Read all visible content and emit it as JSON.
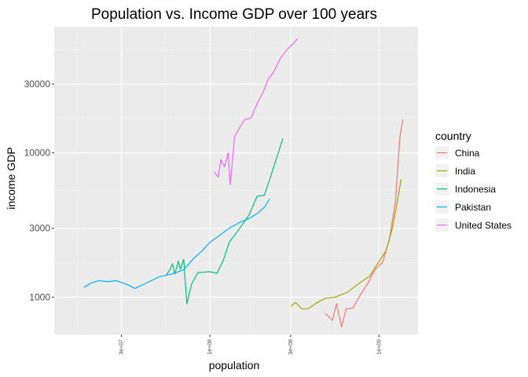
{
  "chart_data": {
    "type": "line",
    "title": "Population vs. Income GDP over 100 years",
    "xlabel": "population",
    "ylabel": "income GDP",
    "x_scale": "log10",
    "y_scale": "log10",
    "xlim": [
      12000000,
      1700000000
    ],
    "ylim": [
      550,
      75000
    ],
    "x_ticks": [
      {
        "value": 30000000,
        "label": "3e+07"
      },
      {
        "value": 100000000,
        "label": "1e+08"
      },
      {
        "value": 300000000,
        "label": "3e+08"
      },
      {
        "value": 1000000000,
        "label": "1e+09"
      }
    ],
    "y_ticks": [
      {
        "value": 1000,
        "label": "1000"
      },
      {
        "value": 3000,
        "label": "3000"
      },
      {
        "value": 10000,
        "label": "10000"
      },
      {
        "value": 30000,
        "label": "30000"
      }
    ],
    "grid": true,
    "legend": {
      "title": "country",
      "position": "right"
    },
    "series": [
      {
        "name": "China",
        "color": "#F8766D",
        "points": [
          [
            480000000,
            770
          ],
          [
            500000000,
            740
          ],
          [
            530000000,
            690
          ],
          [
            560000000,
            900
          ],
          [
            600000000,
            620
          ],
          [
            640000000,
            830
          ],
          [
            700000000,
            840
          ],
          [
            780000000,
            1050
          ],
          [
            860000000,
            1250
          ],
          [
            950000000,
            1560
          ],
          [
            1050000000,
            1750
          ],
          [
            1150000000,
            2500
          ],
          [
            1250000000,
            4600
          ],
          [
            1300000000,
            9000
          ],
          [
            1330000000,
            13000
          ],
          [
            1380000000,
            17000
          ]
        ]
      },
      {
        "name": "India",
        "color": "#A3A500",
        "points": [
          [
            300000000,
            860
          ],
          [
            320000000,
            920
          ],
          [
            350000000,
            830
          ],
          [
            380000000,
            830
          ],
          [
            420000000,
            900
          ],
          [
            480000000,
            980
          ],
          [
            550000000,
            1000
          ],
          [
            650000000,
            1080
          ],
          [
            750000000,
            1230
          ],
          [
            880000000,
            1400
          ],
          [
            1000000000,
            1770
          ],
          [
            1100000000,
            2100
          ],
          [
            1200000000,
            3000
          ],
          [
            1300000000,
            5000
          ],
          [
            1350000000,
            6600
          ]
        ]
      },
      {
        "name": "Indonesia",
        "color": "#00BF7D",
        "points": [
          [
            55000000,
            1420
          ],
          [
            58000000,
            1550
          ],
          [
            60000000,
            1700
          ],
          [
            62000000,
            1450
          ],
          [
            65000000,
            1770
          ],
          [
            67000000,
            1560
          ],
          [
            70000000,
            1830
          ],
          [
            73000000,
            900
          ],
          [
            78000000,
            1240
          ],
          [
            85000000,
            1480
          ],
          [
            100000000,
            1500
          ],
          [
            110000000,
            1460
          ],
          [
            120000000,
            1800
          ],
          [
            130000000,
            2400
          ],
          [
            150000000,
            3000
          ],
          [
            170000000,
            3700
          ],
          [
            190000000,
            5000
          ],
          [
            210000000,
            5100
          ],
          [
            230000000,
            7000
          ],
          [
            250000000,
            9500
          ],
          [
            270000000,
            12600
          ]
        ]
      },
      {
        "name": "Pakistan",
        "color": "#00B0F6",
        "points": [
          [
            18000000,
            1170
          ],
          [
            20000000,
            1260
          ],
          [
            22000000,
            1300
          ],
          [
            25000000,
            1280
          ],
          [
            28000000,
            1300
          ],
          [
            32000000,
            1230
          ],
          [
            36000000,
            1150
          ],
          [
            42000000,
            1250
          ],
          [
            50000000,
            1380
          ],
          [
            60000000,
            1450
          ],
          [
            70000000,
            1550
          ],
          [
            80000000,
            1850
          ],
          [
            90000000,
            2100
          ],
          [
            100000000,
            2400
          ],
          [
            115000000,
            2700
          ],
          [
            130000000,
            3000
          ],
          [
            150000000,
            3300
          ],
          [
            170000000,
            3500
          ],
          [
            190000000,
            3800
          ],
          [
            210000000,
            4200
          ],
          [
            225000000,
            4800
          ]
        ]
      },
      {
        "name": "United States",
        "color": "#E76BF3",
        "points": [
          [
            106000000,
            7400
          ],
          [
            112000000,
            6800
          ],
          [
            116000000,
            9000
          ],
          [
            122000000,
            8000
          ],
          [
            128000000,
            10000
          ],
          [
            132000000,
            6000
          ],
          [
            140000000,
            13000
          ],
          [
            150000000,
            15000
          ],
          [
            160000000,
            17000
          ],
          [
            175000000,
            17500
          ],
          [
            190000000,
            22000
          ],
          [
            205000000,
            26000
          ],
          [
            220000000,
            32000
          ],
          [
            240000000,
            37000
          ],
          [
            260000000,
            45000
          ],
          [
            285000000,
            52000
          ],
          [
            310000000,
            57000
          ],
          [
            330000000,
            62000
          ]
        ]
      }
    ]
  }
}
